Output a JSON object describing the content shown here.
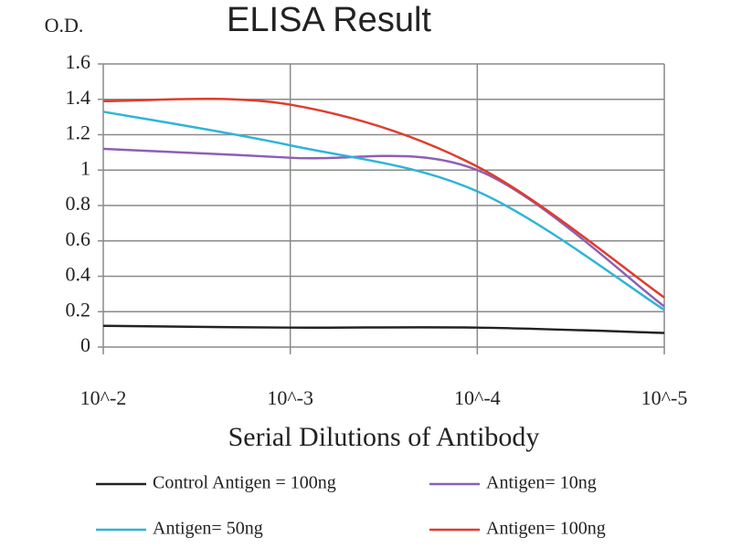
{
  "chart_data": {
    "type": "line",
    "title": "ELISA Result",
    "y_label": "O.D.",
    "x_label": "Serial Dilutions of Antibody",
    "categories": [
      "10^-2",
      "10^-3",
      "10^-4",
      "10^-5"
    ],
    "ylim": [
      0,
      1.6
    ],
    "yticks": [
      0,
      0.2,
      0.4,
      0.6,
      0.8,
      1,
      1.2,
      1.4,
      1.6
    ],
    "grid": true,
    "legend": "bottom",
    "series": [
      {
        "name": "Control Antigen = 100ng",
        "color": "#222222",
        "values": [
          0.12,
          0.11,
          0.11,
          0.08
        ]
      },
      {
        "name": "Antigen= 10ng",
        "color": "#8e5fb5",
        "values": [
          1.12,
          1.07,
          1.0,
          0.23
        ]
      },
      {
        "name": "Antigen= 50ng",
        "color": "#2fb4d8",
        "values": [
          1.33,
          1.14,
          0.88,
          0.21
        ]
      },
      {
        "name": "Antigen= 100ng",
        "color": "#e03c2b",
        "values": [
          1.39,
          1.37,
          1.02,
          0.28
        ]
      }
    ]
  }
}
